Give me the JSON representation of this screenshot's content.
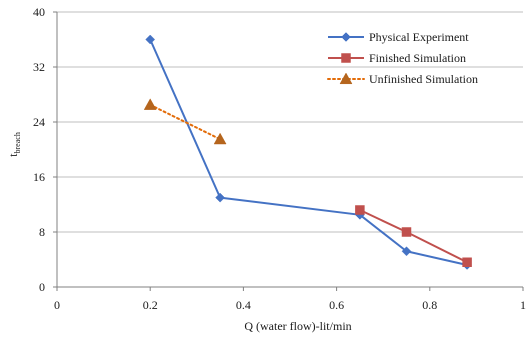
{
  "chart_data": {
    "type": "line",
    "title": "",
    "xlabel": "Q (water flow)-lit/min",
    "ylabel_main": "t",
    "ylabel_subscript": "breach",
    "xlim": [
      0,
      1
    ],
    "ylim": [
      0,
      40
    ],
    "x_ticks": [
      "0",
      "0.2",
      "0.4",
      "0.6",
      "0.8",
      "1"
    ],
    "x_tick_values": [
      0,
      0.2,
      0.4,
      0.6,
      0.8,
      1
    ],
    "y_ticks": [
      "0",
      "8",
      "16",
      "24",
      "32",
      "40"
    ],
    "y_tick_values": [
      0,
      8,
      16,
      24,
      32,
      40
    ],
    "grid": "horizontal",
    "legend_position": "top-right",
    "series": [
      {
        "name": "Physical Experiment",
        "color": "#4472C4",
        "marker": "diamond",
        "line": "solid",
        "points": [
          {
            "x": 0.2,
            "y": 36
          },
          {
            "x": 0.35,
            "y": 13
          },
          {
            "x": 0.65,
            "y": 10.5
          },
          {
            "x": 0.75,
            "y": 5.2
          },
          {
            "x": 0.88,
            "y": 3.2
          }
        ]
      },
      {
        "name": "Finished Simulation",
        "color": "#C0504D",
        "marker": "square",
        "line": "solid",
        "points": [
          {
            "x": 0.65,
            "y": 11.2
          },
          {
            "x": 0.75,
            "y": 8
          },
          {
            "x": 0.88,
            "y": 3.6
          }
        ]
      },
      {
        "name": "Unfinished Simulation",
        "color": "#B5651D",
        "line_color": "#E36C09",
        "marker": "triangle",
        "line": "dotted",
        "points": [
          {
            "x": 0.2,
            "y": 26.5
          },
          {
            "x": 0.35,
            "y": 21.5
          }
        ]
      }
    ]
  }
}
